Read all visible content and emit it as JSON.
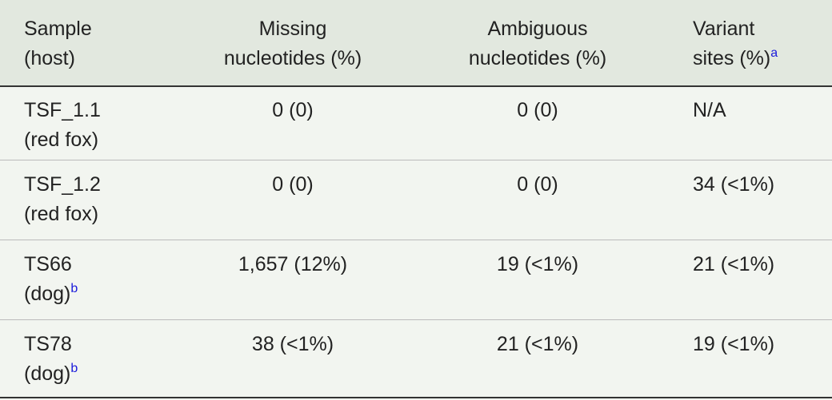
{
  "table": {
    "header": [
      {
        "lines": [
          "Sample",
          "(host)"
        ]
      },
      {
        "lines": [
          "Missing",
          "nucleotides (%)"
        ]
      },
      {
        "lines": [
          "Ambiguous",
          "nucleotides (%)"
        ]
      },
      {
        "lines": [
          "Variant",
          "sites (%)"
        ],
        "note": "a"
      }
    ],
    "rows": [
      {
        "sample": "TSF_1.1",
        "host": "(red fox)",
        "missing": "0 (0)",
        "ambiguous": "0 (0)",
        "variant": "N/A"
      },
      {
        "sample": "TSF_1.2",
        "host": "(red fox)",
        "missing": "0 (0)",
        "ambiguous": "0 (0)",
        "variant": "34 (<1%)"
      },
      {
        "sample": "TS66",
        "host": "(dog)",
        "note": "b",
        "missing": "1,657 (12%)",
        "ambiguous": "19 (<1%)",
        "variant": "21 (<1%)"
      },
      {
        "sample": "TS78",
        "host": "(dog)",
        "note": "b",
        "missing": "38 (<1%)",
        "ambiguous": "21 (<1%)",
        "variant": "19 (<1%)"
      }
    ]
  }
}
